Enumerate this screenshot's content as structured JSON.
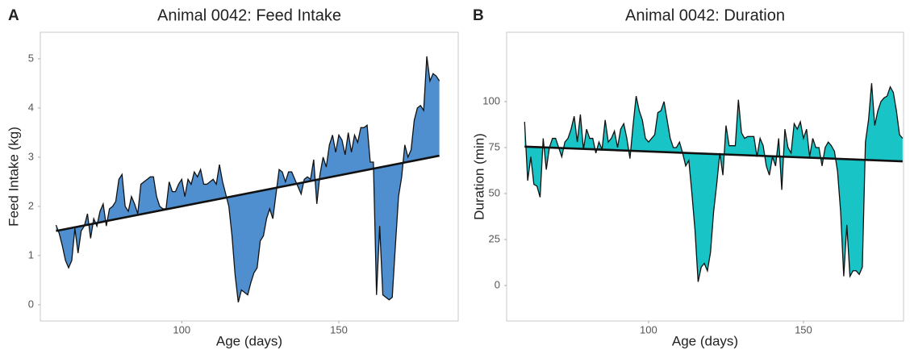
{
  "chart_data": [
    {
      "type": "line",
      "panel_label": "A",
      "title": "Animal 0042: Feed Intake",
      "x_label": "Age (days)",
      "y_label": "Feed Intake (kg)",
      "xlim": [
        55,
        188
      ],
      "ylim": [
        -0.33,
        5.54
      ],
      "xticks": [
        100,
        150
      ],
      "yticks": [
        0,
        1,
        2,
        3,
        4,
        5
      ],
      "grid": false,
      "series": [
        {
          "color": "#4f8fcf",
          "x": [
            60,
            61,
            62,
            63,
            64,
            65,
            66,
            67,
            68,
            69,
            70,
            71,
            72,
            73,
            74,
            75,
            76,
            77,
            78,
            79,
            80,
            81,
            82,
            83,
            84,
            85,
            86,
            87,
            88,
            89,
            90,
            91,
            92,
            93,
            94,
            95,
            96,
            97,
            98,
            99,
            100,
            101,
            102,
            103,
            104,
            105,
            106,
            107,
            108,
            109,
            110,
            111,
            112,
            113,
            114,
            115,
            116,
            117,
            118,
            119,
            120,
            121,
            122,
            123,
            124,
            125,
            126,
            127,
            128,
            129,
            130,
            131,
            132,
            133,
            134,
            135,
            136,
            137,
            138,
            139,
            140,
            141,
            142,
            143,
            144,
            145,
            146,
            147,
            148,
            149,
            150,
            151,
            152,
            153,
            154,
            155,
            156,
            157,
            158,
            159,
            160,
            161,
            162,
            163,
            164,
            165,
            166,
            167,
            168,
            169,
            170,
            171,
            172,
            173,
            174,
            175,
            176,
            177,
            178,
            179,
            180,
            181,
            182
          ],
          "values": [
            1.62,
            1.45,
            1.2,
            0.9,
            0.75,
            0.9,
            1.55,
            1.05,
            1.5,
            1.6,
            1.85,
            1.35,
            1.75,
            1.6,
            1.9,
            2.05,
            1.6,
            1.95,
            2.0,
            2.1,
            2.55,
            2.65,
            2.0,
            1.9,
            2.2,
            2.05,
            1.85,
            2.45,
            2.5,
            2.55,
            2.6,
            2.6,
            2.2,
            2.0,
            1.95,
            1.95,
            2.5,
            2.3,
            2.3,
            2.45,
            2.55,
            2.2,
            2.55,
            2.45,
            2.7,
            2.6,
            2.75,
            2.45,
            2.45,
            2.5,
            2.55,
            2.45,
            2.85,
            2.5,
            2.25,
            2.0,
            1.4,
            0.6,
            0.05,
            0.3,
            0.25,
            0.2,
            0.45,
            0.65,
            0.75,
            1.3,
            1.4,
            1.75,
            1.95,
            1.75,
            2.25,
            2.75,
            2.7,
            2.5,
            2.7,
            2.7,
            2.55,
            2.4,
            2.25,
            2.55,
            2.6,
            2.55,
            2.95,
            2.05,
            2.65,
            3.0,
            2.8,
            3.25,
            3.45,
            3.1,
            3.45,
            3.35,
            3.05,
            3.5,
            3.1,
            3.45,
            3.3,
            3.6,
            3.6,
            3.65,
            2.9,
            2.9,
            0.2,
            1.6,
            0.2,
            0.15,
            0.1,
            0.15,
            1.2,
            2.2,
            2.6,
            3.25,
            3.0,
            3.15,
            3.75,
            4.0,
            4.05,
            3.95,
            5.05,
            4.55,
            4.7,
            4.65,
            4.55
          ]
        }
      ],
      "trend": {
        "color": "#111111",
        "x": [
          60,
          182
        ],
        "values": [
          1.5,
          3.03
        ]
      }
    },
    {
      "type": "line",
      "panel_label": "B",
      "title": "Animal 0042: Duration",
      "x_label": "Age (days)",
      "y_label": "Duration (min)",
      "xlim": [
        54.2,
        182.3
      ],
      "ylim": [
        -19.3,
        137.7
      ],
      "xticks": [
        100,
        150
      ],
      "yticks": [
        0,
        25,
        50,
        75,
        100
      ],
      "grid": false,
      "series": [
        {
          "color": "#19c4c6",
          "x": [
            60,
            61,
            62,
            63,
            64,
            65,
            66,
            67,
            68,
            69,
            70,
            71,
            72,
            73,
            74,
            75,
            76,
            77,
            78,
            79,
            80,
            81,
            82,
            83,
            84,
            85,
            86,
            87,
            88,
            89,
            90,
            91,
            92,
            93,
            94,
            95,
            96,
            97,
            98,
            99,
            100,
            101,
            102,
            103,
            104,
            105,
            106,
            107,
            108,
            109,
            110,
            111,
            112,
            113,
            114,
            115,
            116,
            117,
            118,
            119,
            120,
            121,
            122,
            123,
            124,
            125,
            126,
            127,
            128,
            129,
            130,
            131,
            132,
            133,
            134,
            135,
            136,
            137,
            138,
            139,
            140,
            141,
            142,
            143,
            144,
            145,
            146,
            147,
            148,
            149,
            150,
            151,
            152,
            153,
            154,
            155,
            156,
            157,
            158,
            159,
            160,
            161,
            162,
            163,
            164,
            165,
            166,
            167,
            168,
            169,
            170,
            171,
            172,
            173,
            174,
            175,
            176,
            177,
            178,
            179,
            180,
            181,
            182
          ],
          "values": [
            89,
            57,
            70,
            55,
            54,
            48,
            80,
            63,
            75,
            80,
            80,
            75,
            70,
            78,
            80,
            85,
            92,
            78,
            93,
            74,
            85,
            80,
            80,
            72,
            78,
            74,
            90,
            78,
            80,
            84,
            75,
            85,
            88,
            80,
            69,
            87,
            103,
            95,
            90,
            80,
            78,
            80,
            82,
            94,
            95,
            100,
            90,
            80,
            75,
            75,
            78,
            72,
            65,
            68,
            50,
            30,
            2,
            10,
            12,
            8,
            18,
            40,
            55,
            72,
            60,
            87,
            76,
            76,
            76,
            101,
            83,
            80,
            81,
            81,
            81,
            70,
            80,
            76,
            65,
            60,
            70,
            65,
            80,
            52,
            85,
            75,
            72,
            88,
            85,
            89,
            80,
            85,
            70,
            80,
            75,
            75,
            65,
            75,
            78,
            76,
            73,
            62,
            40,
            5,
            33,
            5,
            8,
            8,
            6,
            10,
            78,
            90,
            110,
            87,
            95,
            100,
            102,
            103,
            108,
            105,
            95,
            82,
            80
          ]
        }
      ],
      "trend": {
        "color": "#111111",
        "x": [
          60,
          182
        ],
        "values": [
          75.5,
          67.5
        ]
      }
    }
  ]
}
